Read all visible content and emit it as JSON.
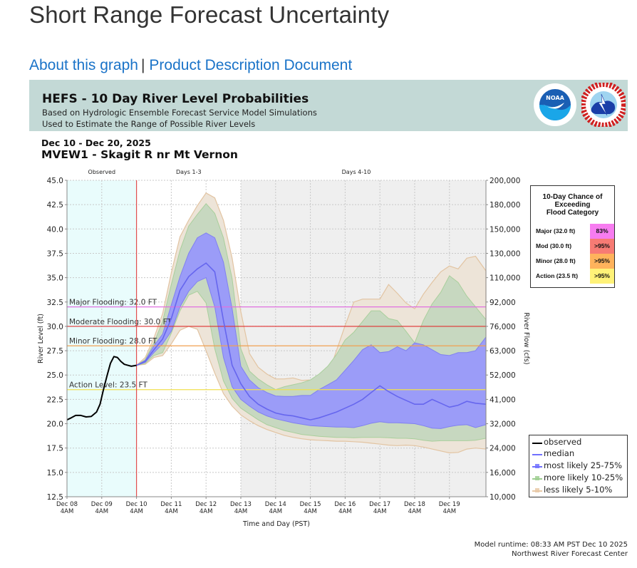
{
  "page": {
    "title": "Short Range Forecast Uncertainty",
    "links": [
      {
        "label": "About this graph"
      },
      {
        "label": "Product Description Document"
      }
    ],
    "link_separator": "|"
  },
  "banner": {
    "title": "HEFS - 10 Day River Level Probabilities",
    "subtitle1": "Based on Hydrologic Ensemble Forecast Service Model Simulations",
    "subtitle2": "Used to Estimate the Range of Possible River Levels",
    "logos": [
      {
        "name": "noaa-logo",
        "text": "NOAA"
      },
      {
        "name": "nws-logo",
        "text": "NATIONAL WEATHER SERVICE"
      }
    ]
  },
  "header": {
    "date_range": "Dec 10 - Dec 20, 2025",
    "station": "MVEW1 - Skagit R nr Mt Vernon"
  },
  "exceedance_table": {
    "title_lines": [
      "10-Day Chance of",
      "Exceeding",
      "Flood Category"
    ],
    "rows": [
      {
        "label": "Major (32.0 ft)",
        "value": "83%",
        "color": "#f77cf0"
      },
      {
        "label": "Mod (30.0 ft)",
        "value": ">95%",
        "color": "#f77b74"
      },
      {
        "label": "Minor (28.0 ft)",
        "value": ">95%",
        "color": "#ffb35c"
      },
      {
        "label": "Action (23.5 ft)",
        "value": ">95%",
        "color": "#fff278"
      }
    ]
  },
  "legend": {
    "items": [
      {
        "label": "observed",
        "color": "#000000",
        "kind": "line"
      },
      {
        "label": "median",
        "color": "#7070ff",
        "kind": "line"
      },
      {
        "label": "most likely 25-75%",
        "color": "#7070ff",
        "kind": "band"
      },
      {
        "label": "more likely 10-25%",
        "color": "#9fcf92",
        "kind": "band"
      },
      {
        "label": "less likely 5-10%",
        "color": "#e8c9a6",
        "kind": "band"
      }
    ]
  },
  "footer": {
    "runtime": "Model runtime: 08:33 AM PST Dec 10 2025",
    "center": "Northwest River Forecast Center"
  },
  "chart_data": {
    "type": "area",
    "title": "HEFS - 10 Day River Level Probabilities",
    "xlabel": "Time and Day (PST)",
    "ylabel": "River Level (ft)",
    "y2label": "River Flow (cfs)",
    "x_units": "days since Dec 08 4AM",
    "xlim": [
      0,
      12.05
    ],
    "ylim": [
      12.5,
      45.0
    ],
    "grid": true,
    "legend_position": "bottom-right (outside)",
    "x_ticks": [
      {
        "x": 0,
        "line1": "Dec 08",
        "line2": "4AM"
      },
      {
        "x": 1,
        "line1": "Dec 09",
        "line2": "4AM"
      },
      {
        "x": 2,
        "line1": "Dec 10",
        "line2": "4AM"
      },
      {
        "x": 3,
        "line1": "Dec 11",
        "line2": "4AM"
      },
      {
        "x": 4,
        "line1": "Dec 12",
        "line2": "4AM"
      },
      {
        "x": 5,
        "line1": "Dec 13",
        "line2": "4AM"
      },
      {
        "x": 6,
        "line1": "Dec 14",
        "line2": "4AM"
      },
      {
        "x": 7,
        "line1": "Dec 15",
        "line2": "4AM"
      },
      {
        "x": 8,
        "line1": "Dec 16",
        "line2": "4AM"
      },
      {
        "x": 9,
        "line1": "Dec 17",
        "line2": "4AM"
      },
      {
        "x": 10,
        "line1": "Dec 18",
        "line2": "4AM"
      },
      {
        "x": 11,
        "line1": "Dec 19",
        "line2": "4AM"
      }
    ],
    "y_ticks": [
      "45.0",
      "42.5",
      "40.0",
      "37.5",
      "35.0",
      "32.5",
      "30.0",
      "27.5",
      "25.0",
      "22.5",
      "20.0",
      "17.5",
      "15.0",
      "12.5"
    ],
    "y2_ticks": [
      {
        "stage": 45.0,
        "label": "200,000"
      },
      {
        "stage": 42.5,
        "label": "180,000"
      },
      {
        "stage": 40.0,
        "label": "150,000"
      },
      {
        "stage": 37.5,
        "label": "130,000"
      },
      {
        "stage": 35.0,
        "label": "110,000"
      },
      {
        "stage": 32.5,
        "label": "92,000"
      },
      {
        "stage": 30.0,
        "label": "76,000"
      },
      {
        "stage": 27.5,
        "label": "63,000"
      },
      {
        "stage": 25.0,
        "label": "52,000"
      },
      {
        "stage": 22.5,
        "label": "41,000"
      },
      {
        "stage": 20.0,
        "label": "32,000"
      },
      {
        "stage": 17.5,
        "label": "24,000"
      },
      {
        "stage": 15.0,
        "label": "16,000"
      },
      {
        "stage": 12.5,
        "label": "10,000"
      }
    ],
    "periods": [
      {
        "label": "Observed",
        "start": 0,
        "end": 2,
        "color": "#e9fcfc"
      },
      {
        "label": "Days 1-3",
        "start": 2,
        "end": 5,
        "color": "#ffffff"
      },
      {
        "label": "Days 4-10",
        "start": 5,
        "end": 12.05,
        "color": "#efefef"
      }
    ],
    "forecast_start": 2,
    "thresholds": [
      {
        "label": "Major Flooding: 32.0 FT",
        "value": 32.0,
        "color": "#e070e0"
      },
      {
        "label": "Moderate Flooding: 30.0 FT",
        "value": 30.0,
        "color": "#e03030"
      },
      {
        "label": "Minor Flooding: 28.0 FT",
        "value": 28.0,
        "color": "#f0a050"
      },
      {
        "label": "Action Level: 23.5 FT",
        "value": 23.5,
        "color": "#f0e050"
      }
    ],
    "observed": {
      "x": [
        0,
        0.12,
        0.25,
        0.4,
        0.55,
        0.7,
        0.85,
        0.95,
        1.05,
        1.15,
        1.25,
        1.35,
        1.45,
        1.55,
        1.65,
        1.75,
        1.85,
        2.0
      ],
      "y": [
        20.4,
        20.6,
        20.85,
        20.85,
        20.7,
        20.75,
        21.2,
        22.0,
        23.5,
        24.9,
        26.2,
        26.9,
        26.8,
        26.4,
        26.1,
        26.0,
        25.9,
        26.0
      ]
    },
    "forecast_x": [
      2.0,
      2.25,
      2.5,
      2.75,
      3.0,
      3.25,
      3.5,
      3.75,
      4.0,
      4.25,
      4.5,
      4.75,
      5.0,
      5.25,
      5.5,
      5.75,
      6.0,
      6.25,
      6.5,
      6.75,
      7.0,
      7.25,
      7.5,
      7.75,
      8.0,
      8.25,
      8.5,
      8.75,
      9.0,
      9.25,
      9.5,
      9.75,
      10.0,
      10.25,
      10.5,
      10.75,
      11.0,
      11.25,
      11.5,
      11.75,
      12.05
    ],
    "bands": {
      "p5": [
        26.0,
        26.1,
        26.8,
        27.0,
        28.2,
        29.6,
        30.0,
        29.7,
        27.5,
        25.2,
        23.1,
        21.8,
        20.9,
        20.3,
        19.8,
        19.4,
        19.1,
        18.8,
        18.6,
        18.45,
        18.35,
        18.3,
        18.25,
        18.2,
        18.2,
        18.15,
        18.1,
        18.0,
        17.9,
        17.8,
        17.75,
        17.8,
        17.75,
        17.6,
        17.4,
        17.2,
        17.0,
        17.05,
        17.4,
        17.5,
        17.4
      ],
      "p10": [
        26.0,
        26.2,
        27.0,
        27.3,
        29.3,
        31.6,
        33.2,
        33.6,
        32.4,
        27.7,
        24.4,
        22.6,
        21.6,
        21.0,
        20.4,
        19.9,
        19.6,
        19.3,
        19.1,
        18.9,
        18.8,
        18.7,
        18.65,
        18.6,
        18.6,
        18.55,
        18.6,
        18.6,
        18.6,
        18.55,
        18.5,
        18.5,
        18.45,
        18.3,
        18.2,
        18.25,
        18.25,
        18.25,
        18.25,
        18.3,
        18.5
      ],
      "p25": [
        26.0,
        26.3,
        27.3,
        28.2,
        29.5,
        32.0,
        33.6,
        34.6,
        35.0,
        32.0,
        26.8,
        23.8,
        22.5,
        21.8,
        21.2,
        20.8,
        20.5,
        20.3,
        20.1,
        19.95,
        19.8,
        19.75,
        19.7,
        19.65,
        19.65,
        19.6,
        19.8,
        20.05,
        20.2,
        20.1,
        20.1,
        20.05,
        20.0,
        19.8,
        19.55,
        19.5,
        19.7,
        19.85,
        19.9,
        19.6,
        19.9
      ],
      "p50": [
        26.0,
        26.4,
        27.6,
        28.7,
        30.8,
        33.7,
        35.1,
        35.9,
        36.5,
        35.6,
        30.6,
        26.0,
        24.1,
        22.8,
        22.0,
        21.5,
        21.1,
        20.9,
        20.8,
        20.6,
        20.4,
        20.6,
        20.9,
        21.2,
        21.6,
        22.0,
        22.5,
        23.2,
        23.9,
        23.3,
        22.8,
        22.4,
        22.0,
        22.0,
        22.5,
        22.1,
        21.7,
        21.9,
        22.3,
        22.1,
        22.0
      ],
      "p75": [
        26.0,
        26.5,
        28.0,
        29.2,
        32.2,
        35.1,
        37.5,
        39.1,
        39.6,
        39.1,
        36.6,
        31.8,
        25.9,
        24.5,
        23.7,
        23.2,
        22.85,
        22.8,
        22.8,
        22.9,
        22.9,
        23.5,
        24.0,
        24.5,
        25.5,
        26.5,
        27.6,
        28.1,
        27.3,
        27.4,
        27.9,
        27.5,
        28.3,
        28.1,
        27.6,
        27.1,
        27.0,
        27.3,
        27.3,
        27.5,
        28.9
      ],
      "p90": [
        26.0,
        26.6,
        28.3,
        30.5,
        34.3,
        37.8,
        40.3,
        41.5,
        42.6,
        41.6,
        39.1,
        34.9,
        27.7,
        25.4,
        24.6,
        24.0,
        23.5,
        23.8,
        24.0,
        24.2,
        24.5,
        25.1,
        25.9,
        27.1,
        28.6,
        29.4,
        30.5,
        31.6,
        31.6,
        30.8,
        30.6,
        29.5,
        28.3,
        30.6,
        32.3,
        33.5,
        35.2,
        34.5,
        33.1,
        32.0,
        30.7
      ],
      "p95": [
        26.0,
        26.8,
        28.8,
        31.3,
        35.5,
        39.2,
        40.9,
        42.4,
        43.7,
        43.2,
        40.9,
        37.0,
        31.5,
        27.2,
        25.8,
        25.1,
        24.6,
        24.6,
        24.7,
        24.45,
        24.5,
        24.6,
        24.9,
        27.5,
        30.1,
        32.5,
        32.8,
        32.8,
        32.8,
        34.3,
        33.4,
        32.4,
        31.8,
        33.3,
        34.5,
        35.6,
        36.2,
        35.9,
        37.0,
        37.2,
        35.7
      ]
    }
  }
}
